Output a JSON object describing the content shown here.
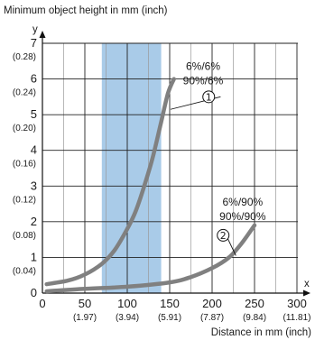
{
  "chart_data": {
    "type": "line",
    "title": "",
    "ylabel": "Minimum object height in mm (inch)",
    "y_axis_symbol": "y",
    "xlabel": "Distance in mm (inch)",
    "x_axis_symbol": "x",
    "xlim": [
      0,
      310
    ],
    "ylim": [
      0,
      7
    ],
    "x_ticks": [
      {
        "value": 0,
        "label": "0",
        "sub": ""
      },
      {
        "value": 50,
        "label": "50",
        "sub": "(1.97)"
      },
      {
        "value": 100,
        "label": "100",
        "sub": "(3.94)"
      },
      {
        "value": 150,
        "label": "150",
        "sub": "(5.91)"
      },
      {
        "value": 200,
        "label": "200",
        "sub": "(7.87)"
      },
      {
        "value": 250,
        "label": "250",
        "sub": "(9.84)"
      },
      {
        "value": 300,
        "label": "300",
        "sub": "(11.81)"
      }
    ],
    "y_ticks": [
      {
        "value": 0,
        "label": "0",
        "sub": ""
      },
      {
        "value": 1,
        "label": "1",
        "sub": "(0.04)"
      },
      {
        "value": 2,
        "label": "2",
        "sub": "(0.08)"
      },
      {
        "value": 3,
        "label": "3",
        "sub": "(0.12)"
      },
      {
        "value": 4,
        "label": "4",
        "sub": "(0.16)"
      },
      {
        "value": 5,
        "label": "5",
        "sub": "(0.20)"
      },
      {
        "value": 6,
        "label": "6",
        "sub": "(0.24)"
      },
      {
        "value": 7,
        "label": "7",
        "sub": "(0.28)"
      }
    ],
    "grid": true,
    "highlight_band": {
      "x": [
        70,
        140
      ],
      "color": "#a9cbe8"
    },
    "series": [
      {
        "marker": "1",
        "x": [
          5,
          30,
          50,
          70,
          85,
          100,
          110,
          120,
          130,
          140,
          148,
          155
        ],
        "y": [
          0.25,
          0.35,
          0.52,
          0.82,
          1.2,
          1.8,
          2.3,
          3.0,
          3.8,
          4.8,
          5.6,
          6.0
        ],
        "color": "#808080",
        "labels": [
          "6%/6%",
          "90%/6%"
        ]
      },
      {
        "marker": "2",
        "x": [
          5,
          50,
          100,
          150,
          175,
          200,
          220,
          235,
          250
        ],
        "y": [
          0.05,
          0.12,
          0.18,
          0.3,
          0.45,
          0.7,
          1.0,
          1.4,
          1.9
        ],
        "color": "#808080",
        "labels": [
          "6%/90%",
          "90%/90%"
        ]
      }
    ]
  }
}
